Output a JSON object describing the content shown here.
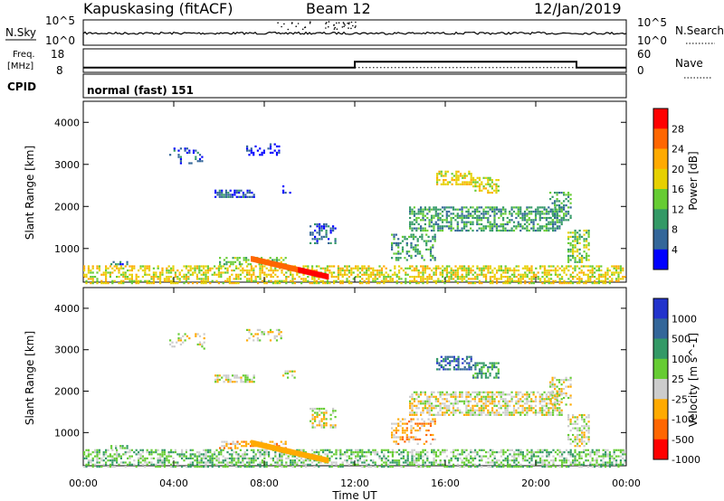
{
  "header": {
    "station": "Kapuskasing (fitACF)",
    "beam": "Beam 12",
    "date": "12/Jan/2019"
  },
  "noise_panel": {
    "left_label": "N.Sky",
    "left_ticks": [
      "10^5",
      "10^0"
    ],
    "right_ticks": [
      "10^5",
      "10^0"
    ],
    "right_label": "N.Search"
  },
  "freq_panel": {
    "left_label_1": "Freq.",
    "left_label_2": "[MHz]",
    "left_ticks": [
      "18",
      "8"
    ],
    "right_ticks": [
      "60",
      "0"
    ],
    "right_label": "Nave",
    "freq_steps": [
      {
        "start_h": 0,
        "end_h": 12,
        "value": 10
      },
      {
        "start_h": 12,
        "end_h": 21.8,
        "value": 12.5
      },
      {
        "start_h": 21.8,
        "end_h": 24,
        "value": 10
      }
    ],
    "nave_level": 12,
    "freq_range": [
      8,
      18
    ],
    "nave_range": [
      0,
      60
    ]
  },
  "cpid": {
    "label": "CPID",
    "mode": "normal (fast) 151"
  },
  "chart_data": [
    {
      "type": "heatmap",
      "quantity": "Power",
      "ylabel": "Slant Range [km]",
      "colorbar_label": "Power [dB]",
      "colorbar_ticks": [
        "28",
        "24",
        "20",
        "16",
        "12",
        "8",
        "4"
      ],
      "colorbar_colors": [
        "#ff0000",
        "#ff6600",
        "#ffaa00",
        "#e6d000",
        "#66cc33",
        "#339966",
        "#336699",
        "#0000ff"
      ],
      "y_ticks": [
        "4000",
        "3000",
        "2000",
        "1000"
      ],
      "y_tick_values": [
        4000,
        3000,
        2000,
        1000
      ],
      "ylim": [
        200,
        4500
      ],
      "xlim_h": [
        0,
        24
      ]
    },
    {
      "type": "heatmap",
      "quantity": "Velocity",
      "ylabel": "Slant Range [km]",
      "colorbar_label": "Velocity [m s^-1]",
      "colorbar_ticks": [
        "1000",
        "500",
        "100",
        "25",
        "-25",
        "-100",
        "-500",
        "-1000"
      ],
      "colorbar_colors": [
        "#2233cc",
        "#336699",
        "#339966",
        "#66cc33",
        "#cccccc",
        "#ffaa00",
        "#ff6600",
        "#ff0000"
      ],
      "y_ticks": [
        "4000",
        "3000",
        "2000",
        "1000"
      ],
      "y_tick_values": [
        4000,
        3000,
        2000,
        1000
      ],
      "ylim": [
        200,
        4500
      ],
      "xlim_h": [
        0,
        24
      ]
    }
  ],
  "x_axis": {
    "ticks": [
      "00:00",
      "04:00",
      "08:00",
      "12:00",
      "16:00",
      "20:00",
      "00:00"
    ],
    "tick_hours": [
      0,
      4,
      8,
      12,
      16,
      20,
      24
    ],
    "label": "Time UT"
  }
}
